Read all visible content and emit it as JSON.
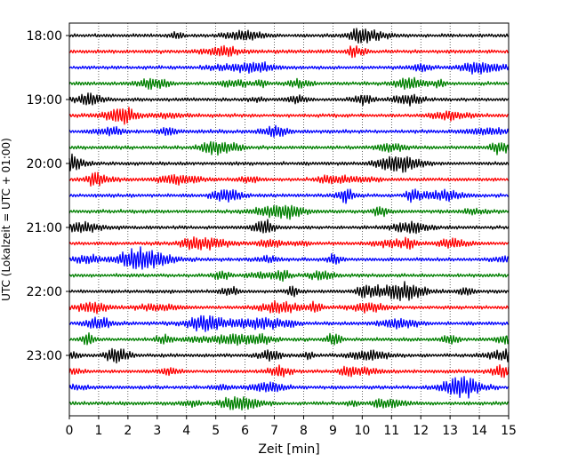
{
  "chart_data": {
    "type": "line",
    "subtype": "helicorder",
    "title": "",
    "xlabel": "Zeit  [min]",
    "ylabel": "UTC (Lokalzeit = UTC + 01:00)",
    "xlim": [
      0,
      15
    ],
    "x_ticks": [
      "0",
      "1",
      "2",
      "3",
      "4",
      "5",
      "6",
      "7",
      "8",
      "9",
      "10",
      "11",
      "12",
      "13",
      "14",
      "15"
    ],
    "y_ticks": [
      "18:00",
      "19:00",
      "20:00",
      "21:00",
      "22:00",
      "23:00"
    ],
    "trace_interval_minutes": 15,
    "grid": "vertical dotted lines at each minute",
    "trace_colors": [
      "#000000",
      "#ff0000",
      "#0000ff",
      "#008000"
    ],
    "series": [
      {
        "start": "18:00"
      },
      {
        "start": "18:15"
      },
      {
        "start": "18:30"
      },
      {
        "start": "18:45"
      },
      {
        "start": "19:00"
      },
      {
        "start": "19:15"
      },
      {
        "start": "19:30"
      },
      {
        "start": "19:45"
      },
      {
        "start": "20:00"
      },
      {
        "start": "20:15"
      },
      {
        "start": "20:30"
      },
      {
        "start": "20:45"
      },
      {
        "start": "21:00"
      },
      {
        "start": "21:15"
      },
      {
        "start": "21:30"
      },
      {
        "start": "21:45"
      },
      {
        "start": "22:00"
      },
      {
        "start": "22:15"
      },
      {
        "start": "22:30"
      },
      {
        "start": "22:45"
      },
      {
        "start": "23:00"
      },
      {
        "start": "23:15"
      },
      {
        "start": "23:30"
      },
      {
        "start": "23:45"
      }
    ]
  }
}
